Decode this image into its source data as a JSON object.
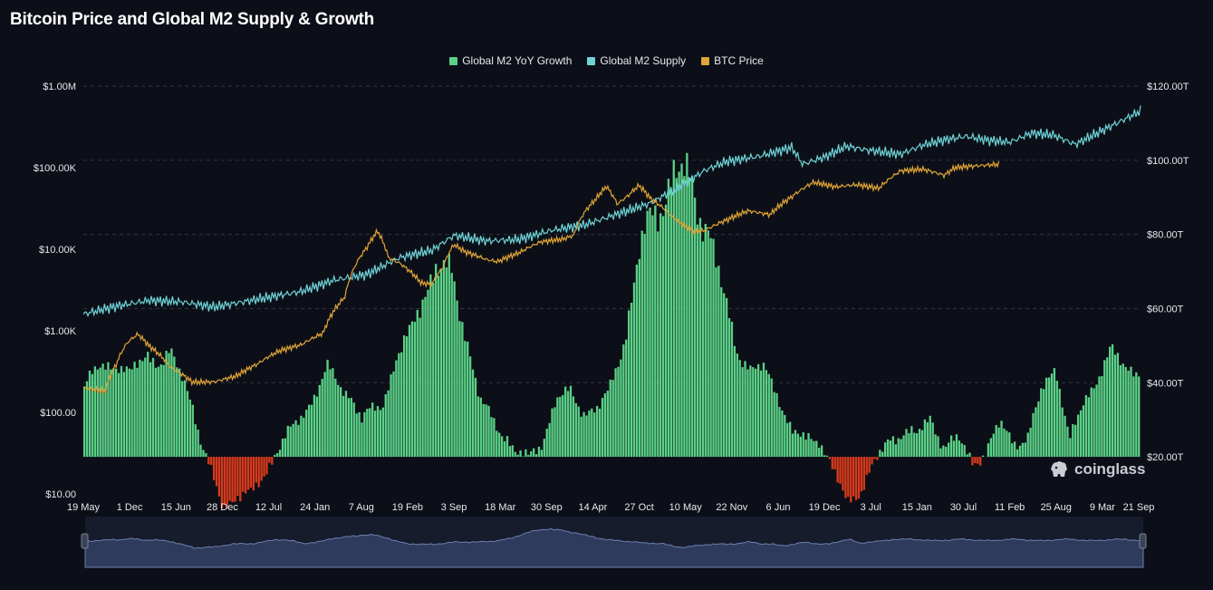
{
  "title": "Bitcoin Price and Global M2 Supply & Growth",
  "watermark": "coinglass",
  "colors": {
    "background": "#0c0f17",
    "growth_positive": "#5ad187",
    "growth_negative": "#d93a1c",
    "m2_supply": "#6fd3d8",
    "btc_price": "#e0a437",
    "grid": "#2f3542",
    "navigator_fill": "#2e3b5c",
    "navigator_line": "#6c7fb0"
  },
  "legend": [
    {
      "label": "Global M2 YoY Growth",
      "color": "#5ad187"
    },
    {
      "label": "Global M2 Supply",
      "color": "#6fd3d8"
    },
    {
      "label": "BTC Price",
      "color": "#e0a437"
    }
  ],
  "chart_data": {
    "type": "bar+line",
    "title": "Bitcoin Price and Global M2 Supply & Growth",
    "x_tick_labels": [
      "19 May",
      "1 Dec",
      "15 Jun",
      "28 Dec",
      "12 Jul",
      "24 Jan",
      "7 Aug",
      "19 Feb",
      "3 Sep",
      "18 Mar",
      "30 Sep",
      "14 Apr",
      "27 Oct",
      "10 May",
      "22 Nov",
      "6 Jun",
      "19 Dec",
      "3 Jul",
      "15 Jan",
      "30 Jul",
      "11 Feb",
      "25 Aug",
      "9 Mar",
      "21 Sep"
    ],
    "y_left": {
      "scale": "log",
      "ticks": [
        "$1.00M",
        "$100.00K",
        "$10.00K",
        "$1.00K",
        "$100.00",
        "$10.00"
      ],
      "range": [
        10,
        1000000
      ]
    },
    "y_right": {
      "scale": "linear",
      "ticks": [
        "$120.00T",
        "$100.00T",
        "$80.00T",
        "$60.00T",
        "$40.00T",
        "$20.00T"
      ],
      "range": [
        20,
        120
      ],
      "unit": "T"
    },
    "growth_zero_on_right_axis": 20,
    "growth_scale_note": "YoY growth bars share the right axis baseline at $20.00T; relative height units",
    "series": [
      {
        "name": "Global M2 YoY Growth",
        "kind": "bar",
        "axis": "right",
        "anchors": [
          [
            0,
            21
          ],
          [
            1.2,
            27
          ],
          [
            2.5,
            28
          ],
          [
            3.3,
            24
          ],
          [
            4.5,
            31
          ],
          [
            5.6,
            28
          ],
          [
            6.2,
            30
          ],
          [
            7.2,
            23
          ],
          [
            7.8,
            16
          ],
          [
            8.5,
            3
          ],
          [
            9,
            -4
          ],
          [
            10,
            -15
          ],
          [
            11,
            -11
          ],
          [
            12,
            -12
          ],
          [
            13,
            -5
          ],
          [
            13.8,
            2
          ],
          [
            15,
            8
          ],
          [
            16.5,
            18
          ],
          [
            17.5,
            26
          ],
          [
            18.5,
            21
          ],
          [
            19.3,
            18
          ],
          [
            20,
            11
          ],
          [
            21.5,
            16
          ],
          [
            22.5,
            30
          ],
          [
            23.5,
            36
          ],
          [
            24.5,
            50
          ],
          [
            25.3,
            57
          ],
          [
            26.5,
            53
          ],
          [
            27.5,
            37
          ],
          [
            28.5,
            17
          ],
          [
            29.5,
            10
          ],
          [
            30.5,
            6
          ],
          [
            31,
            2
          ],
          [
            32,
            -1
          ],
          [
            33,
            5
          ],
          [
            34,
            17
          ],
          [
            35,
            19
          ],
          [
            36,
            14
          ],
          [
            37,
            14
          ],
          [
            37.8,
            19
          ],
          [
            39,
            37
          ],
          [
            40,
            60
          ],
          [
            41,
            73
          ],
          [
            42.5,
            84
          ],
          [
            43.8,
            81
          ],
          [
            45,
            68
          ],
          [
            46,
            48
          ],
          [
            47,
            33
          ],
          [
            48,
            26
          ],
          [
            49,
            26
          ],
          [
            50,
            19
          ],
          [
            51,
            7
          ],
          [
            52,
            5
          ],
          [
            53,
            6
          ],
          [
            54,
            -5
          ],
          [
            55,
            -14
          ],
          [
            56,
            -9
          ],
          [
            57,
            -2
          ],
          [
            58,
            5
          ],
          [
            59,
            8
          ],
          [
            60,
            6
          ],
          [
            61,
            12
          ],
          [
            62,
            3
          ],
          [
            63,
            5
          ],
          [
            64,
            -1
          ],
          [
            65,
            1
          ],
          [
            66,
            10
          ],
          [
            67,
            5
          ],
          [
            68,
            5
          ],
          [
            69,
            20
          ],
          [
            70,
            28
          ],
          [
            71,
            4
          ],
          [
            72,
            16
          ],
          [
            73,
            24
          ],
          [
            74,
            31
          ],
          [
            75,
            27
          ],
          [
            76,
            26
          ]
        ]
      },
      {
        "name": "Global M2 Supply",
        "kind": "line",
        "axis": "right",
        "unit": "T",
        "anchors": [
          [
            0,
            58.5
          ],
          [
            3,
            60.5
          ],
          [
            6,
            62
          ],
          [
            9,
            61.5
          ],
          [
            12,
            60
          ],
          [
            15,
            61.5
          ],
          [
            18,
            63
          ],
          [
            20,
            64
          ],
          [
            23,
            67
          ],
          [
            26,
            68.5
          ],
          [
            29,
            73
          ],
          [
            32,
            75
          ],
          [
            34,
            79
          ],
          [
            37,
            77.5
          ],
          [
            40,
            78
          ],
          [
            43,
            80.5
          ],
          [
            46,
            82
          ],
          [
            49,
            85
          ],
          [
            52,
            88
          ],
          [
            55,
            93
          ],
          [
            57,
            97
          ],
          [
            59,
            99.5
          ],
          [
            62,
            101
          ],
          [
            65,
            103.5
          ],
          [
            66,
            99
          ],
          [
            68,
            101
          ],
          [
            70,
            104
          ],
          [
            72,
            103
          ],
          [
            75,
            102
          ],
          [
            77,
            104.5
          ],
          [
            79,
            106
          ],
          [
            81,
            107
          ],
          [
            83,
            106
          ],
          [
            85,
            105.5
          ],
          [
            87,
            108
          ],
          [
            89,
            107.5
          ],
          [
            91,
            105
          ],
          [
            93,
            108
          ],
          [
            95,
            111
          ],
          [
            97,
            114
          ]
        ]
      },
      {
        "name": "BTC Price",
        "kind": "line",
        "axis": "left",
        "unit": "USD",
        "anchors": [
          [
            0,
            200
          ],
          [
            2,
            180
          ],
          [
            3,
            380
          ],
          [
            4,
            700
          ],
          [
            5,
            900
          ],
          [
            6,
            650
          ],
          [
            8,
            350
          ],
          [
            10,
            230
          ],
          [
            12,
            230
          ],
          [
            14,
            270
          ],
          [
            16,
            380
          ],
          [
            18,
            550
          ],
          [
            20,
            650
          ],
          [
            22,
            900
          ],
          [
            24,
            2500
          ],
          [
            26,
            10000
          ],
          [
            27,
            16000
          ],
          [
            28,
            7500
          ],
          [
            29,
            6500
          ],
          [
            31,
            3700
          ],
          [
            32,
            3600
          ],
          [
            33,
            5800
          ],
          [
            34,
            11000
          ],
          [
            35,
            9000
          ],
          [
            37,
            7200
          ],
          [
            38,
            6800
          ],
          [
            40,
            8800
          ],
          [
            42,
            12000
          ],
          [
            44,
            13000
          ],
          [
            45,
            14500
          ],
          [
            46,
            28000
          ],
          [
            47,
            40000
          ],
          [
            48,
            58000
          ],
          [
            49,
            35000
          ],
          [
            50,
            45000
          ],
          [
            51,
            60000
          ],
          [
            52,
            42000
          ],
          [
            54,
            25000
          ],
          [
            55,
            20000
          ],
          [
            56,
            16500
          ],
          [
            57,
            17000
          ],
          [
            59,
            23000
          ],
          [
            61,
            30000
          ],
          [
            63,
            27000
          ],
          [
            65,
            45000
          ],
          [
            67,
            68000
          ],
          [
            69,
            60000
          ],
          [
            71,
            64000
          ],
          [
            73,
            58000
          ],
          [
            75,
            95000
          ],
          [
            77,
            100000
          ],
          [
            79,
            84000
          ],
          [
            80,
            105000
          ],
          [
            82,
            110000
          ],
          [
            84,
            115000
          ]
        ]
      }
    ]
  },
  "navigator": {
    "label": "range-navigator"
  }
}
